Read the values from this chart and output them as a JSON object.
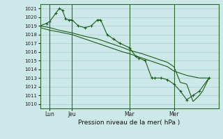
{
  "title": "Pression niveau de la mer( hPa )",
  "bg_color": "#cce8e8",
  "grid_color": "#aacccc",
  "line_color": "#1a5c1a",
  "vline_color": "#2a6a2a",
  "xlim": [
    0,
    56
  ],
  "ylim": [
    1009.5,
    1021.5
  ],
  "yticks": [
    1010,
    1011,
    1012,
    1013,
    1014,
    1015,
    1016,
    1017,
    1018,
    1019,
    1020,
    1021
  ],
  "xtick_labels": [
    "Lun",
    "Jeu",
    "Mar",
    "Mer"
  ],
  "xtick_positions": [
    3,
    10,
    28,
    42
  ],
  "vlines": [
    3,
    10,
    28,
    42
  ],
  "s1": [
    [
      0,
      1019.0
    ],
    [
      2,
      1019.3
    ],
    [
      3,
      1019.5
    ],
    [
      5,
      1020.5
    ],
    [
      6,
      1021.0
    ],
    [
      7,
      1020.8
    ],
    [
      8,
      1019.8
    ],
    [
      9,
      1019.7
    ],
    [
      10,
      1019.7
    ],
    [
      12,
      1019.0
    ],
    [
      14,
      1018.8
    ],
    [
      16,
      1019.0
    ],
    [
      18,
      1019.7
    ],
    [
      19,
      1019.7
    ],
    [
      21,
      1018.0
    ],
    [
      23,
      1017.5
    ],
    [
      25,
      1017.0
    ],
    [
      28,
      1016.5
    ],
    [
      30,
      1015.5
    ],
    [
      31,
      1015.3
    ],
    [
      33,
      1015.0
    ],
    [
      35,
      1013.0
    ],
    [
      36,
      1013.0
    ],
    [
      38,
      1013.0
    ],
    [
      40,
      1012.8
    ],
    [
      42,
      1012.3
    ],
    [
      44,
      1011.5
    ],
    [
      46,
      1010.5
    ],
    [
      48,
      1011.0
    ],
    [
      50,
      1011.5
    ],
    [
      53,
      1013.0
    ]
  ],
  "s2": [
    [
      0,
      1018.8
    ],
    [
      3,
      1018.5
    ],
    [
      6,
      1018.3
    ],
    [
      10,
      1018.0
    ],
    [
      14,
      1017.5
    ],
    [
      18,
      1017.0
    ],
    [
      22,
      1016.5
    ],
    [
      26,
      1016.0
    ],
    [
      28,
      1015.8
    ],
    [
      32,
      1015.3
    ],
    [
      36,
      1014.8
    ],
    [
      40,
      1014.3
    ],
    [
      42,
      1013.8
    ],
    [
      46,
      1013.3
    ],
    [
      50,
      1013.0
    ],
    [
      53,
      1013.0
    ]
  ],
  "s3": [
    [
      0,
      1019.0
    ],
    [
      3,
      1018.8
    ],
    [
      6,
      1018.5
    ],
    [
      10,
      1018.2
    ],
    [
      14,
      1017.8
    ],
    [
      18,
      1017.5
    ],
    [
      22,
      1017.0
    ],
    [
      26,
      1016.5
    ],
    [
      28,
      1016.2
    ],
    [
      32,
      1015.8
    ],
    [
      36,
      1015.3
    ],
    [
      40,
      1014.8
    ],
    [
      42,
      1014.3
    ],
    [
      44,
      1012.5
    ],
    [
      46,
      1012.3
    ],
    [
      48,
      1010.3
    ],
    [
      50,
      1011.0
    ],
    [
      51,
      1011.5
    ],
    [
      53,
      1013.0
    ]
  ]
}
